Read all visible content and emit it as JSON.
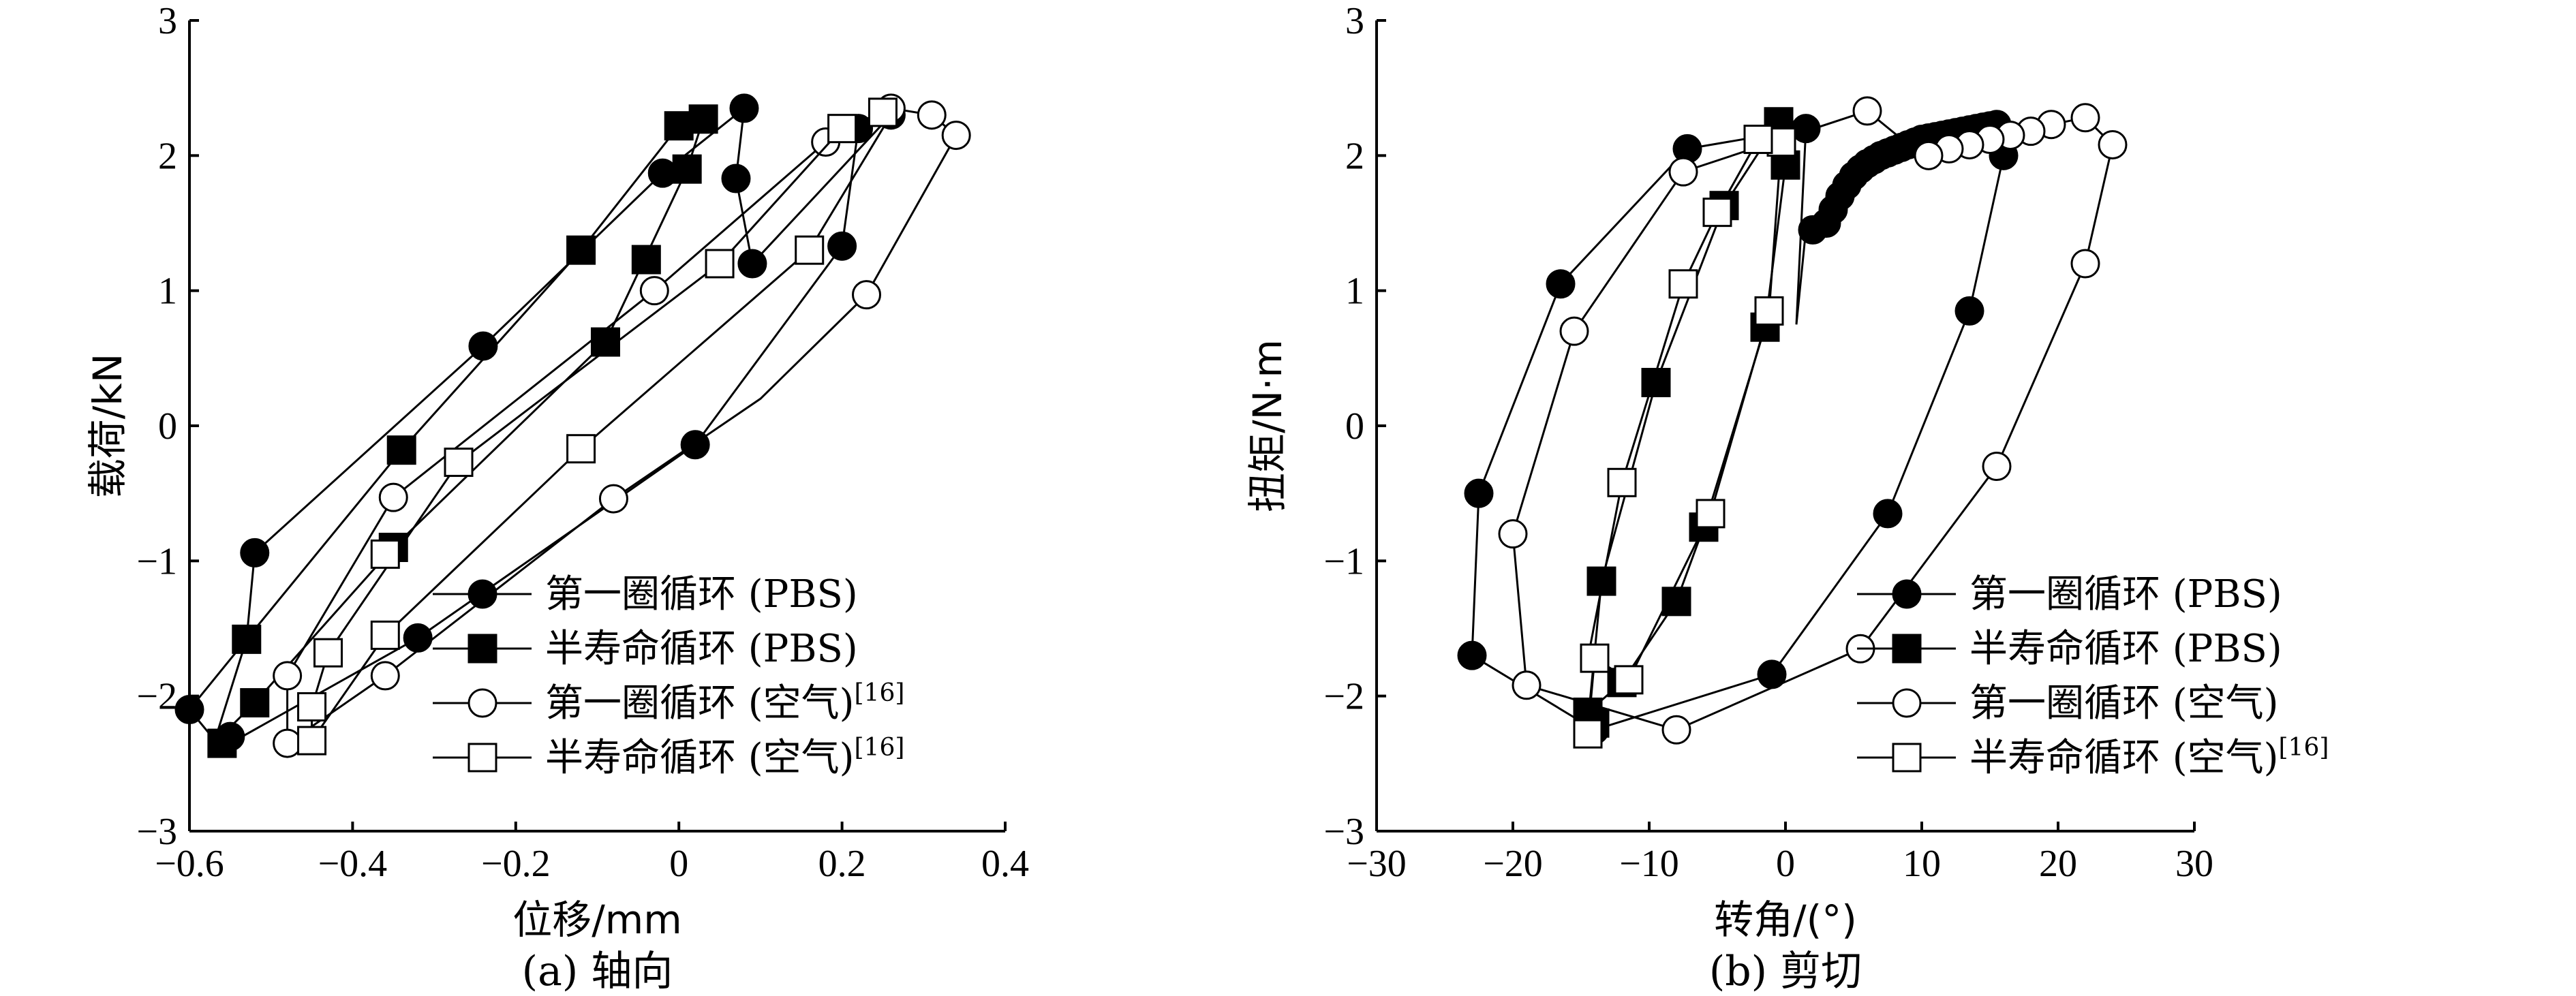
{
  "chart_data": [
    {
      "panel": "a",
      "type": "line",
      "caption": "(a) 轴向",
      "xlabel": "位移/mm",
      "ylabel": "载荷/kN",
      "xlim": [
        -0.6,
        0.4
      ],
      "ylim": [
        -3,
        3
      ],
      "xticks": [
        -0.6,
        -0.4,
        -0.2,
        0,
        0.2,
        0.4
      ],
      "xtick_labels": [
        "−0.6",
        "−0.4",
        "−0.2",
        "0",
        "0.2",
        "0.4"
      ],
      "yticks": [
        -3,
        -2,
        -1,
        0,
        1,
        2,
        3
      ],
      "ytick_labels": [
        "−3",
        "−2",
        "−1",
        "0",
        "1",
        "2",
        "3"
      ],
      "legend_position": "bottom-right",
      "series": [
        {
          "name": "第一圈循环 (PBS)",
          "sup": "",
          "marker": "circle",
          "filled": true,
          "points": [
            [
              -0.6,
              -2.1
            ],
            [
              -0.57,
              -2.32
            ],
            [
              -0.55,
              -2.35
            ],
            [
              -0.32,
              -1.57
            ],
            [
              0.02,
              -0.14
            ],
            [
              0.2,
              1.33
            ],
            [
              0.22,
              2.2
            ],
            [
              0.26,
              2.3
            ],
            [
              0.09,
              1.2
            ],
            [
              0.07,
              1.83
            ],
            [
              0.08,
              2.35
            ],
            [
              -0.02,
              1.87
            ],
            [
              -0.24,
              0.59
            ],
            [
              -0.52,
              -0.94
            ],
            [
              -0.53,
              -1.58
            ],
            [
              -0.6,
              -2.1
            ]
          ],
          "markers": [
            [
              -0.6,
              -2.1
            ],
            [
              -0.55,
              -2.3
            ],
            [
              -0.32,
              -1.57
            ],
            [
              0.02,
              -0.14
            ],
            [
              0.2,
              1.33
            ],
            [
              0.22,
              2.2
            ],
            [
              0.26,
              2.3
            ],
            [
              0.09,
              1.2
            ],
            [
              0.07,
              1.83
            ],
            [
              0.08,
              2.35
            ],
            [
              -0.02,
              1.87
            ],
            [
              -0.24,
              0.59
            ],
            [
              -0.52,
              -0.94
            ]
          ]
        },
        {
          "name": "半寿命循环 (PBS)",
          "sup": "",
          "marker": "square",
          "filled": true,
          "points": [
            [
              -0.57,
              -2.35
            ],
            [
              -0.52,
              -2.05
            ],
            [
              -0.35,
              -0.9
            ],
            [
              -0.09,
              0.62
            ],
            [
              0.01,
              1.9
            ],
            [
              0.03,
              2.27
            ],
            [
              0.0,
              2.22
            ],
            [
              -0.12,
              1.3
            ],
            [
              -0.34,
              -0.18
            ],
            [
              -0.53,
              -1.58
            ],
            [
              -0.57,
              -2.35
            ]
          ],
          "markers": [
            [
              -0.56,
              -2.35
            ],
            [
              -0.52,
              -2.05
            ],
            [
              -0.35,
              -0.9
            ],
            [
              -0.09,
              0.62
            ],
            [
              -0.04,
              1.23
            ],
            [
              0.01,
              1.9
            ],
            [
              0.03,
              2.27
            ],
            [
              0.0,
              2.22
            ],
            [
              -0.12,
              1.3
            ],
            [
              -0.34,
              -0.18
            ],
            [
              -0.53,
              -1.58
            ]
          ]
        },
        {
          "name": "第一圈循环 (空气)",
          "sup": "[16]",
          "marker": "circle",
          "filled": false,
          "points": [
            [
              -0.48,
              -2.35
            ],
            [
              -0.36,
              -1.85
            ],
            [
              -0.08,
              -0.54
            ],
            [
              0.1,
              0.2
            ],
            [
              0.23,
              0.97
            ],
            [
              0.34,
              2.15
            ],
            [
              0.31,
              2.3
            ],
            [
              0.26,
              2.35
            ],
            [
              0.18,
              2.1
            ],
            [
              -0.03,
              1.0
            ],
            [
              -0.35,
              -0.53
            ],
            [
              -0.48,
              -1.85
            ],
            [
              -0.48,
              -2.35
            ]
          ],
          "markers": [
            [
              -0.48,
              -2.35
            ],
            [
              -0.36,
              -1.85
            ],
            [
              -0.08,
              -0.54
            ],
            [
              0.23,
              0.97
            ],
            [
              0.34,
              2.15
            ],
            [
              0.31,
              2.3
            ],
            [
              0.26,
              2.35
            ],
            [
              0.18,
              2.1
            ],
            [
              -0.03,
              1.0
            ],
            [
              -0.35,
              -0.53
            ],
            [
              -0.48,
              -1.85
            ]
          ]
        },
        {
          "name": "半寿命循环 (空气)",
          "sup": "[16]",
          "marker": "square",
          "filled": false,
          "points": [
            [
              -0.45,
              -2.33
            ],
            [
              -0.36,
              -1.55
            ],
            [
              -0.12,
              -0.17
            ],
            [
              0.16,
              1.3
            ],
            [
              0.26,
              2.3
            ],
            [
              0.25,
              2.32
            ],
            [
              0.2,
              2.2
            ],
            [
              0.05,
              1.2
            ],
            [
              -0.27,
              -0.27
            ],
            [
              -0.43,
              -1.68
            ],
            [
              -0.45,
              -2.08
            ],
            [
              -0.45,
              -2.33
            ]
          ],
          "markers": [
            [
              -0.45,
              -2.33
            ],
            [
              -0.36,
              -1.55
            ],
            [
              -0.12,
              -0.17
            ],
            [
              0.16,
              1.3
            ],
            [
              0.25,
              2.32
            ],
            [
              0.2,
              2.2
            ],
            [
              0.05,
              1.2
            ],
            [
              -0.27,
              -0.27
            ],
            [
              -0.36,
              -0.95
            ],
            [
              -0.43,
              -1.68
            ],
            [
              -0.45,
              -2.08
            ]
          ]
        }
      ]
    },
    {
      "panel": "b",
      "type": "line",
      "caption": "(b) 剪切",
      "xlabel": "转角/(°)",
      "ylabel": "扭矩/N·m",
      "xlim": [
        -30,
        30
      ],
      "ylim": [
        -3,
        3
      ],
      "xticks": [
        -30,
        -20,
        -10,
        0,
        10,
        20,
        30
      ],
      "xtick_labels": [
        "−30",
        "−20",
        "−10",
        "0",
        "10",
        "20",
        "30"
      ],
      "yticks": [
        -3,
        -2,
        -1,
        0,
        1,
        2,
        3
      ],
      "ytick_labels": [
        "−3",
        "−2",
        "−1",
        "0",
        "1",
        "2",
        "3"
      ],
      "legend_position": "bottom-right",
      "series": [
        {
          "name": "第一圈循环 (PBS)",
          "sup": "",
          "marker": "circle",
          "filled": true,
          "points": [
            [
              0.8,
              0.75
            ],
            [
              1.5,
              1.45
            ],
            [
              2.5,
              1.45
            ],
            [
              3.5,
              1.55
            ],
            [
              5,
              1.8
            ],
            [
              7,
              2.0
            ],
            [
              10,
              2.1
            ],
            [
              13,
              2.18
            ],
            [
              15.5,
              2.22
            ],
            [
              16,
              2.0
            ],
            [
              13.5,
              0.85
            ],
            [
              7.5,
              -0.65
            ],
            [
              -1,
              -1.84
            ],
            [
              -14,
              -2.25
            ],
            [
              -23,
              -1.7
            ],
            [
              -22.5,
              -0.5
            ],
            [
              -16.5,
              1.05
            ],
            [
              -7.2,
              2.05
            ],
            [
              1.5,
              2.2
            ],
            [
              0.8,
              0.75
            ]
          ],
          "markers": [
            [
              2,
              1.45
            ],
            [
              3,
              1.5
            ],
            [
              3.5,
              1.6
            ],
            [
              4,
              1.7
            ],
            [
              4.5,
              1.78
            ],
            [
              5,
              1.85
            ],
            [
              5.5,
              1.9
            ],
            [
              6,
              1.94
            ],
            [
              6.5,
              1.97
            ],
            [
              7,
              2.0
            ],
            [
              7.5,
              2.02
            ],
            [
              8,
              2.04
            ],
            [
              8.5,
              2.06
            ],
            [
              9,
              2.08
            ],
            [
              9.5,
              2.1
            ],
            [
              10,
              2.12
            ],
            [
              10.5,
              2.13
            ],
            [
              11,
              2.14
            ],
            [
              11.5,
              2.15
            ],
            [
              12,
              2.16
            ],
            [
              12.5,
              2.17
            ],
            [
              13,
              2.18
            ],
            [
              13.5,
              2.19
            ],
            [
              14,
              2.2
            ],
            [
              14.5,
              2.21
            ],
            [
              15,
              2.22
            ],
            [
              15.5,
              2.23
            ],
            [
              16,
              2.0
            ],
            [
              13.5,
              0.85
            ],
            [
              7.5,
              -0.65
            ],
            [
              -1,
              -1.84
            ],
            [
              -14,
              -2.25
            ],
            [
              -23,
              -1.7
            ],
            [
              -22.5,
              -0.5
            ],
            [
              -16.5,
              1.05
            ],
            [
              -7.2,
              2.05
            ],
            [
              1.5,
              2.2
            ]
          ]
        },
        {
          "name": "半寿命循环 (PBS)",
          "sup": "",
          "marker": "square",
          "filled": true,
          "points": [
            [
              -14.5,
              -2.12
            ],
            [
              -12,
              -1.9
            ],
            [
              -8,
              -1.3
            ],
            [
              -6,
              -0.75
            ],
            [
              -1.5,
              0.73
            ],
            [
              0,
              1.93
            ],
            [
              -0.5,
              2.25
            ],
            [
              -4.5,
              1.63
            ],
            [
              -9.5,
              0.32
            ],
            [
              -13.5,
              -1.15
            ],
            [
              -14.5,
              -2.2
            ]
          ],
          "markers": [
            [
              -14.5,
              -2.12
            ],
            [
              -14,
              -2.2
            ],
            [
              -12,
              -1.9
            ],
            [
              -8,
              -1.3
            ],
            [
              -6,
              -0.75
            ],
            [
              -1.5,
              0.73
            ],
            [
              0,
              1.93
            ],
            [
              -0.5,
              2.25
            ],
            [
              -4.5,
              1.63
            ],
            [
              -9.5,
              0.32
            ],
            [
              -13.5,
              -1.15
            ]
          ]
        },
        {
          "name": "第一圈循环 (空气)",
          "sup": "",
          "marker": "circle",
          "filled": false,
          "points": [
            [
              -8,
              -2.25
            ],
            [
              5.5,
              -1.65
            ],
            [
              15.5,
              -0.3
            ],
            [
              22,
              1.2
            ],
            [
              24,
              2.08
            ],
            [
              22,
              2.28
            ],
            [
              19.5,
              2.23
            ],
            [
              14,
              2.1
            ],
            [
              10,
              2.0
            ],
            [
              6,
              2.33
            ],
            [
              -7.5,
              1.88
            ],
            [
              -15.5,
              0.7
            ],
            [
              -20,
              -0.8
            ],
            [
              -19,
              -1.92
            ],
            [
              -8,
              -2.25
            ]
          ],
          "markers": [
            [
              -8,
              -2.25
            ],
            [
              5.5,
              -1.65
            ],
            [
              15.5,
              -0.3
            ],
            [
              22,
              1.2
            ],
            [
              24,
              2.08
            ],
            [
              22,
              2.28
            ],
            [
              19.5,
              2.23
            ],
            [
              18,
              2.18
            ],
            [
              16.5,
              2.15
            ],
            [
              15,
              2.12
            ],
            [
              13.5,
              2.08
            ],
            [
              12,
              2.05
            ],
            [
              10.5,
              2.0
            ],
            [
              6,
              2.33
            ],
            [
              -7.5,
              1.88
            ],
            [
              -15.5,
              0.7
            ],
            [
              -20,
              -0.8
            ],
            [
              -19,
              -1.92
            ]
          ]
        },
        {
          "name": "半寿命循环 (空气)",
          "sup": "[16]",
          "marker": "square",
          "filled": false,
          "points": [
            [
              -14.5,
              -2.28
            ],
            [
              -14,
              -1.72
            ],
            [
              -11.5,
              -1.88
            ],
            [
              -5.5,
              -0.65
            ],
            [
              -1.2,
              0.85
            ],
            [
              -0.3,
              2.1
            ],
            [
              -2,
              2.12
            ],
            [
              -5,
              1.58
            ],
            [
              -7.5,
              1.05
            ],
            [
              -12,
              -0.42
            ],
            [
              -14.5,
              -1.72
            ]
          ],
          "markers": [
            [
              -14.5,
              -2.28
            ],
            [
              -14,
              -1.72
            ],
            [
              -11.5,
              -1.88
            ],
            [
              -5.5,
              -0.65
            ],
            [
              -1.2,
              0.85
            ],
            [
              -0.3,
              2.1
            ],
            [
              -2,
              2.12
            ],
            [
              -5,
              1.58
            ],
            [
              -7.5,
              1.05
            ],
            [
              -12,
              -0.42
            ]
          ]
        }
      ]
    }
  ]
}
